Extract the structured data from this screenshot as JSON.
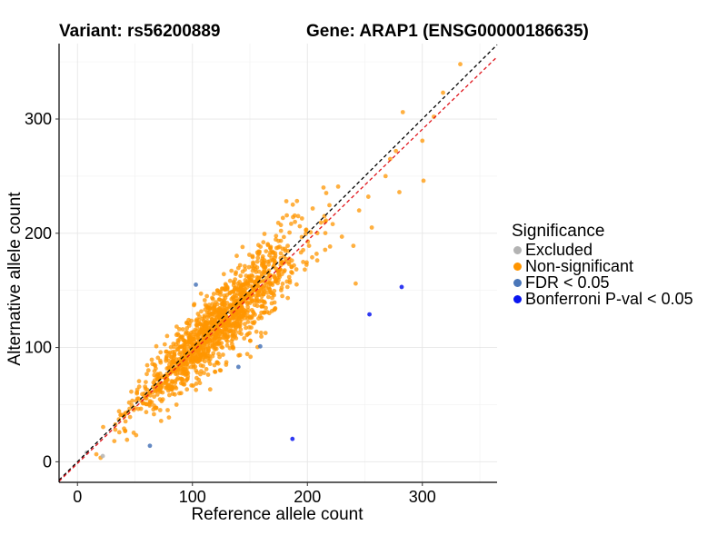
{
  "chart_data": {
    "type": "scatter",
    "title_left": "Variant: rs56200889",
    "title_right": "Gene: ARAP1 (ENSG00000186635)",
    "xlabel": "Reference allele count",
    "ylabel": "Alternative allele count",
    "xlim": [
      -16,
      365
    ],
    "ylim": [
      -18,
      366
    ],
    "x_ticks": [
      0,
      100,
      200,
      300
    ],
    "y_ticks": [
      0,
      100,
      200,
      300
    ],
    "grid": true,
    "legend": {
      "title": "Significance",
      "placement": "right",
      "entries": [
        {
          "label": "Excluded",
          "color": "#b3b3b3"
        },
        {
          "label": "Non-significant",
          "color": "#ff9500"
        },
        {
          "label": "FDR < 0.05",
          "color": "#4a76b8"
        },
        {
          "label": "Bonferroni P-val < 0.05",
          "color": "#0a16f0"
        }
      ]
    },
    "reference_lines": [
      {
        "type": "identity",
        "slope": 1,
        "intercept": 0,
        "color": "#000000",
        "style": "dashed"
      },
      {
        "type": "fit",
        "slope": 0.975,
        "intercept": -1.5,
        "color": "#e0141b",
        "style": "dashed"
      }
    ],
    "series": [
      {
        "name": "Excluded",
        "color": "#b3b3b3",
        "x": [
          8,
          22
        ],
        "y": [
          8,
          5
        ]
      },
      {
        "name": "FDR < 0.05",
        "color": "#4a76b8",
        "x": [
          103,
          63,
          140,
          159
        ],
        "y": [
          155,
          14,
          83,
          101
        ]
      },
      {
        "name": "Bonferroni P-val < 0.05",
        "color": "#0a16f0",
        "x": [
          187,
          254,
          282
        ],
        "y": [
          20,
          129,
          153
        ]
      },
      {
        "name": "Non-significant",
        "color": "#ff9500",
        "x": [
          333,
          318,
          310,
          283,
          300,
          272,
          277,
          268,
          280,
          301,
          253,
          245,
          256,
          222,
          240,
          230,
          214,
          192,
          242,
          208,
          186
        ],
        "y": [
          348,
          323,
          302,
          306,
          281,
          265,
          272,
          250,
          236,
          246,
          232,
          220,
          205,
          208,
          189,
          197,
          240,
          215,
          156,
          182,
          166
        ],
        "cloud": {
          "count": 1400,
          "x_mean": 122,
          "x_sd": 36,
          "x_min": 15,
          "x_max": 230,
          "slope": 0.97,
          "intercept": 0,
          "resid_sd_base": 8,
          "resid_sd_scale": 0.06,
          "seed": 56200889
        }
      }
    ]
  }
}
